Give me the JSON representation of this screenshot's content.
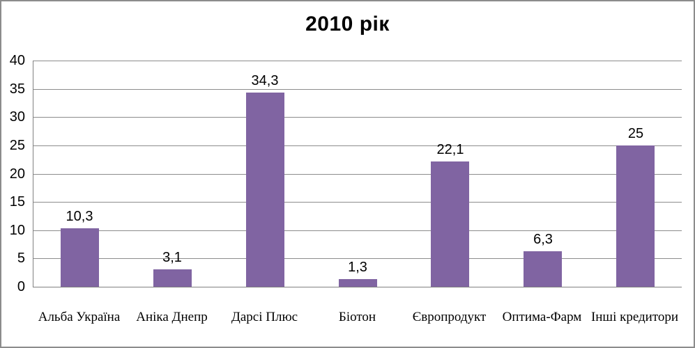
{
  "frame": {
    "background": "#FFFFFF",
    "border_color": "#8C8C8C"
  },
  "chart_data": {
    "type": "bar",
    "title": "2010 рік",
    "categories": [
      "Альба Україна",
      "Аніка Днепр",
      "Дарсі Плюс",
      "Біотон",
      "Європродукт",
      "Оптима-Фарм",
      "Інші кредитори"
    ],
    "values": [
      10.3,
      3.1,
      34.3,
      1.3,
      22.1,
      6.3,
      25
    ],
    "data_labels": [
      "10,3",
      "3,1",
      "34,3",
      "1,3",
      "22,1",
      "6,3",
      "25"
    ],
    "xlabel": "",
    "ylabel": "",
    "ylim": [
      0,
      40
    ],
    "yticks": [
      0,
      5,
      10,
      15,
      20,
      25,
      30,
      35,
      40
    ],
    "ytick_labels": [
      "0",
      "5",
      "10",
      "15",
      "20",
      "25",
      "30",
      "35",
      "40"
    ],
    "grid": true,
    "legend": "none",
    "bar_color": "#8064A2",
    "gridline_color": "#8C8C8C",
    "axis_color": "#808080",
    "text_color": "#000000"
  }
}
